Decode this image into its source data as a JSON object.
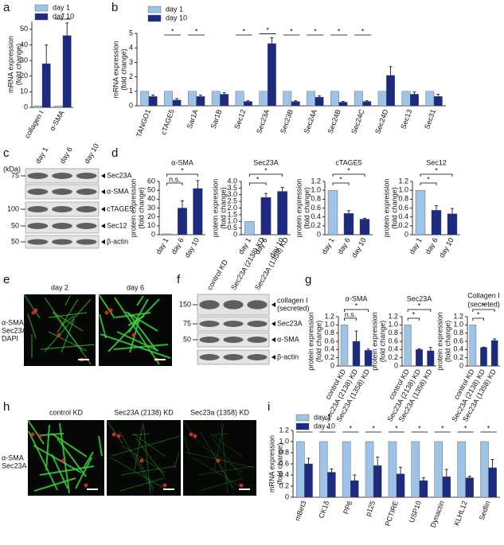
{
  "chart_data": [
    {
      "type": "bar",
      "ylabel": [
        "mRNA expression",
        "(fold change)"
      ],
      "categories": [
        "collagen I",
        "α-SMA"
      ],
      "series": [
        {
          "name": "day 1",
          "color": "#9dc3e6",
          "values": [
            1,
            1
          ],
          "errors": [
            null,
            null
          ]
        },
        {
          "name": "day 10",
          "color": "#1c2a80",
          "values": [
            28,
            46
          ],
          "errors": [
            12,
            8
          ]
        }
      ],
      "significance": [
        null,
        "*"
      ],
      "ylim": [
        0,
        55
      ],
      "yticks": [
        0,
        10,
        20,
        30,
        40,
        50
      ],
      "legend": "top-left"
    },
    {
      "type": "bar",
      "ylabel": [
        "mRNA expression",
        "(fold change)"
      ],
      "categories": [
        "TANGO1",
        "cTAGE5",
        "Sar1A",
        "Sar1B",
        "Sec12",
        "Sec23A",
        "Sec23B",
        "Sec24A",
        "Sec24B",
        "Sec24C",
        "Sec24D",
        "Sec13",
        "Sec31"
      ],
      "series": [
        {
          "name": "day 1",
          "color": "#9dc3e6",
          "values": [
            1,
            1,
            1,
            1,
            1,
            1,
            1,
            1,
            1,
            1,
            1,
            1,
            1
          ],
          "errors": [
            null,
            null,
            null,
            null,
            null,
            null,
            null,
            null,
            null,
            null,
            null,
            null,
            null
          ]
        },
        {
          "name": "day 10",
          "color": "#1c2a80",
          "values": [
            0.65,
            0.4,
            0.65,
            0.8,
            0.3,
            4.3,
            0.3,
            0.6,
            0.25,
            0.3,
            2.1,
            0.8,
            0.65
          ],
          "errors": [
            0.1,
            0.1,
            0.1,
            0.1,
            0.05,
            0.4,
            0.05,
            0.1,
            0.05,
            0.05,
            0.6,
            0.15,
            0.15
          ]
        }
      ],
      "significance": [
        null,
        "*",
        "*",
        null,
        "*",
        "*",
        "*",
        "*",
        "*",
        "*",
        null,
        null,
        null
      ],
      "ylim": [
        0,
        5
      ],
      "yticks": [
        0,
        1,
        2,
        3,
        4,
        5
      ],
      "legend": "top-left"
    },
    {
      "type": "bar",
      "title": "α-SMA",
      "ylabel": [
        "protein expression",
        "(fold change)"
      ],
      "categories": [
        "day 1",
        "day 6",
        "day 10"
      ],
      "values": [
        1,
        30,
        52
      ],
      "errors": [
        null,
        8,
        9
      ],
      "colors": [
        "#9dc3e6",
        "#1c2a80",
        "#1c2a80"
      ],
      "ylim": [
        0,
        60
      ],
      "yticks": [
        0,
        10,
        20,
        30,
        40,
        50,
        60
      ],
      "brackets": [
        {
          "from": "day 1",
          "to": "day 6",
          "label": "n.s."
        },
        {
          "from": "day 1",
          "to": "day 10",
          "label": "*"
        }
      ]
    },
    {
      "type": "bar",
      "title": "Sec23A",
      "ylabel": [
        "protein expression",
        "(fold change)"
      ],
      "categories": [
        "day 1",
        "day 6",
        "day 10"
      ],
      "values": [
        1,
        2.8,
        3.25
      ],
      "errors": [
        null,
        0.3,
        0.3
      ],
      "colors": [
        "#9dc3e6",
        "#1c2a80",
        "#1c2a80"
      ],
      "ylim": [
        0,
        4
      ],
      "yticks": [
        0,
        0.5,
        {
          "value": 1,
          "label": "1.0"
        },
        1.5,
        {
          "value": 2,
          "label": "2.0"
        },
        2.5,
        {
          "value": 3,
          "label": "3.0"
        },
        3.5,
        {
          "value": 4,
          "label": "4.0"
        }
      ],
      "brackets": [
        {
          "from": "day 1",
          "to": "day 6",
          "label": "*"
        },
        {
          "from": "day 1",
          "to": "day 10",
          "label": "*"
        }
      ]
    },
    {
      "type": "bar",
      "title": "cTAGE5",
      "ylabel": [
        "protein expression",
        "(fold change)"
      ],
      "categories": [
        "day 1",
        "day 6",
        "day 10"
      ],
      "values": [
        1,
        0.48,
        0.35
      ],
      "errors": [
        null,
        0.06,
        0.02
      ],
      "colors": [
        "#9dc3e6",
        "#1c2a80",
        "#1c2a80"
      ],
      "ylim": [
        0,
        1.2
      ],
      "yticks": [
        0,
        0.2,
        0.4,
        0.6,
        0.8,
        {
          "value": 1,
          "label": "1.0"
        },
        1.2
      ],
      "brackets": [
        {
          "from": "day 1",
          "to": "day 6",
          "label": "*"
        },
        {
          "from": "day 1",
          "to": "day 10",
          "label": "*"
        }
      ]
    },
    {
      "type": "bar",
      "title": "Sec12",
      "ylabel": [
        "protein expression",
        "(fold change)"
      ],
      "categories": [
        "day 1",
        "day 6",
        "day 10"
      ],
      "values": [
        1,
        0.55,
        0.47
      ],
      "errors": [
        null,
        0.1,
        0.12
      ],
      "colors": [
        "#9dc3e6",
        "#1c2a80",
        "#1c2a80"
      ],
      "ylim": [
        0,
        1.2
      ],
      "yticks": [
        0,
        0.2,
        0.4,
        0.6,
        0.8,
        {
          "value": 1,
          "label": "1.0"
        },
        1.2
      ],
      "brackets": [
        {
          "from": "day 1",
          "to": "day 6",
          "label": "*"
        },
        {
          "from": "day 1",
          "to": "day 10",
          "label": "*"
        }
      ]
    },
    {
      "type": "bar",
      "title": "α-SMA",
      "ylabel": [
        "protein expression",
        "(fold change)"
      ],
      "categories": [
        "control KD",
        "Sec23A (2138) KD",
        "Sec23A (1358) KD"
      ],
      "values": [
        1,
        0.6,
        0.38
      ],
      "errors": [
        null,
        0.25,
        0.03
      ],
      "colors": [
        "#9dc3e6",
        "#1c2a80",
        "#1c2a80"
      ],
      "ylim": [
        0,
        1.2
      ],
      "yticks": [
        0,
        0.2,
        0.4,
        0.6,
        0.8,
        {
          "value": 1,
          "label": "1.0"
        },
        1.2
      ],
      "brackets": [
        {
          "from": "control KD",
          "to": "Sec23A (2138) KD",
          "label": "n.s."
        },
        {
          "from": "control KD",
          "to": "Sec23A (1358) KD",
          "label": "*"
        }
      ]
    },
    {
      "type": "bar",
      "title": "Sec23A",
      "ylabel": [
        "protein expression",
        "(fold change)"
      ],
      "categories": [
        "control KD",
        "Sec23A (2138) KD",
        "Sec23A (1358) KD"
      ],
      "values": [
        1,
        0.4,
        0.37
      ],
      "errors": [
        null,
        0.02,
        0.08
      ],
      "colors": [
        "#9dc3e6",
        "#1c2a80",
        "#1c2a80"
      ],
      "ylim": [
        0,
        1.2
      ],
      "yticks": [
        0,
        0.2,
        0.4,
        0.6,
        0.8,
        {
          "value": 1,
          "label": "1.0"
        },
        1.2
      ],
      "brackets": [
        {
          "from": "control KD",
          "to": "Sec23A (2138) KD",
          "label": "*"
        },
        {
          "from": "control KD",
          "to": "Sec23A (1358) KD",
          "label": "*"
        }
      ]
    },
    {
      "type": "bar",
      "title": [
        "Collagen I",
        "(secreted)"
      ],
      "ylabel": [
        "protein expression",
        "(fold change)"
      ],
      "categories": [
        "control KD",
        "Sec23A (2138) KD",
        "Sec23A (1358) KD"
      ],
      "values": [
        1,
        0.45,
        0.62
      ],
      "errors": [
        null,
        0.01,
        0.04
      ],
      "colors": [
        "#9dc3e6",
        "#1c2a80",
        "#1c2a80"
      ],
      "ylim": [
        0,
        1.2
      ],
      "yticks": [
        0,
        0.2,
        0.4,
        0.6,
        0.8,
        {
          "value": 1,
          "label": "1.0"
        },
        1.2
      ],
      "brackets": [
        {
          "from": "control KD",
          "to": "Sec23A (2138) KD",
          "label": "*"
        },
        {
          "from": "control KD",
          "to": "Sec23A (1358) KD",
          "label": "*"
        }
      ]
    },
    {
      "type": "bar",
      "ylabel": [
        "mRNA expression",
        "(fold change)"
      ],
      "categories": [
        "mBet3",
        "CK1δ",
        "PP6",
        "p125",
        "PCTIRE",
        "USP10",
        "Dynactin",
        "KLHL12",
        "Sedlin"
      ],
      "series": [
        {
          "name": "day 1",
          "color": "#9dc3e6",
          "values": [
            1,
            1,
            1,
            1,
            1,
            1,
            1,
            1,
            1
          ],
          "errors": [
            null,
            null,
            null,
            null,
            null,
            null,
            null,
            null,
            null
          ]
        },
        {
          "name": "day 10",
          "color": "#1c2a80",
          "values": [
            0.6,
            0.45,
            0.3,
            0.57,
            0.42,
            0.3,
            0.37,
            0.35,
            0.53
          ],
          "errors": [
            0.1,
            0.06,
            0.1,
            0.15,
            0.12,
            0.05,
            0.13,
            0.03,
            0.15
          ]
        }
      ],
      "significance": [
        "*",
        "*",
        "*",
        "*",
        "*",
        "*",
        "*",
        "*",
        "*"
      ],
      "ylim": [
        0,
        1.2
      ],
      "yticks": [
        0,
        0.2,
        0.4,
        0.6,
        0.8,
        {
          "value": 1,
          "label": "1.0"
        },
        1.2
      ],
      "legend": "top-left"
    }
  ],
  "panel_letters": [
    "a",
    "b",
    "c",
    "d",
    "e",
    "f",
    "g",
    "h",
    "i"
  ],
  "blot_c": {
    "unit": "(kDa)",
    "lanes": [
      "day 1",
      "day 6",
      "day 10"
    ],
    "rows": [
      {
        "marker": 75,
        "label": "Sec23A"
      },
      {
        "label": "α-SMA"
      },
      {
        "marker": 100,
        "label": "cTAGE5"
      },
      {
        "marker": 50,
        "label": "Sec12"
      },
      {
        "marker": 50,
        "label": "β-actin"
      }
    ]
  },
  "blot_f": {
    "lanes": [
      "control KD",
      "Sec23A (2138) KD",
      "Sec23A (1358) KD"
    ],
    "rows": [
      {
        "marker": 150,
        "label": [
          "collagen I",
          "(secreted)"
        ]
      },
      {
        "marker": 75,
        "label": [
          "Sec23A"
        ]
      },
      {
        "marker": 50,
        "label": [
          "α-SMA"
        ]
      },
      {
        "label": [
          "β-actin"
        ]
      }
    ]
  },
  "panel_e": {
    "channels": [
      "α-SMA",
      "Sec23A",
      "DAPI"
    ],
    "images": [
      "day 2",
      "day 6"
    ]
  },
  "panel_h": {
    "channels": [
      "α-SMA",
      "Sec23A"
    ],
    "images": [
      "control KD",
      "Sec23A (2138) KD",
      "Sec23a (1358) KD"
    ]
  }
}
